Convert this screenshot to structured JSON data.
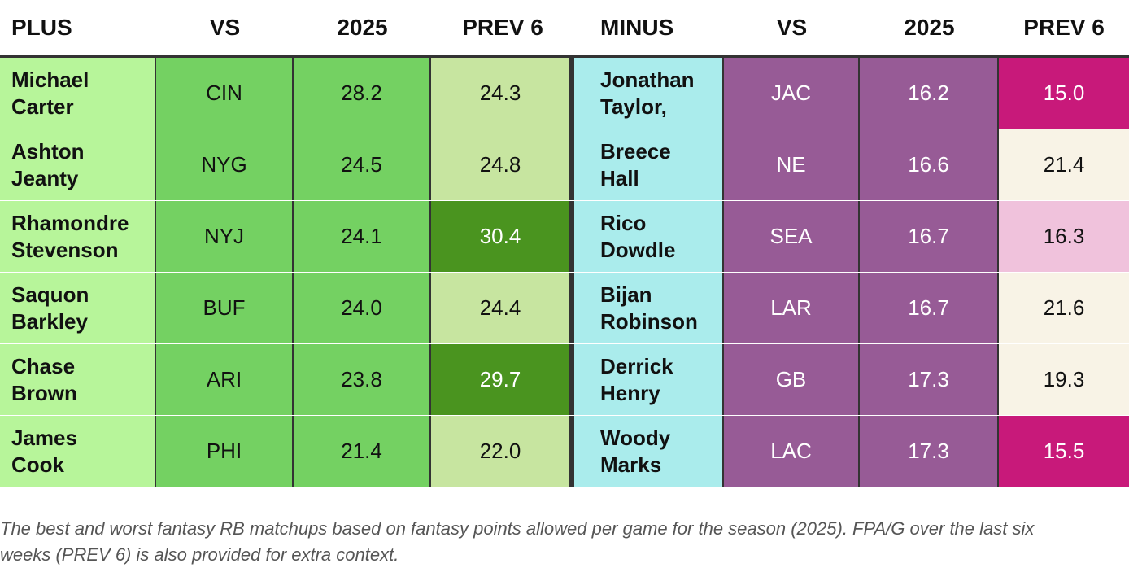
{
  "headers": [
    "PLUS",
    "VS",
    "2025",
    "PREV 6",
    "MINUS",
    "VS",
    "2025",
    "PREV 6"
  ],
  "rows": [
    {
      "plus_name": [
        "Michael",
        "Carter"
      ],
      "plus_vs": "CIN",
      "plus_2025": "28.2",
      "plus_prev6": "24.3",
      "minus_name": [
        "Jonathan",
        "Taylor,"
      ],
      "minus_vs": "JAC",
      "minus_2025": "16.2",
      "minus_prev6": "15.0"
    },
    {
      "plus_name": [
        "Ashton",
        "Jeanty"
      ],
      "plus_vs": "NYG",
      "plus_2025": "24.5",
      "plus_prev6": "24.8",
      "minus_name": [
        "Breece",
        "Hall"
      ],
      "minus_vs": "NE",
      "minus_2025": "16.6",
      "minus_prev6": "21.4"
    },
    {
      "plus_name": [
        "Rhamondre",
        "Stevenson"
      ],
      "plus_vs": "NYJ",
      "plus_2025": "24.1",
      "plus_prev6": "30.4",
      "minus_name": [
        "Rico",
        "Dowdle"
      ],
      "minus_vs": "SEA",
      "minus_2025": "16.7",
      "minus_prev6": "16.3"
    },
    {
      "plus_name": [
        "Saquon",
        "Barkley"
      ],
      "plus_vs": "BUF",
      "plus_2025": "24.0",
      "plus_prev6": "24.4",
      "minus_name": [
        "Bijan",
        "Robinson"
      ],
      "minus_vs": "LAR",
      "minus_2025": "16.7",
      "minus_prev6": "21.6"
    },
    {
      "plus_name": [
        "Chase",
        "Brown"
      ],
      "plus_vs": "ARI",
      "plus_2025": "23.8",
      "plus_prev6": "29.7",
      "minus_name": [
        "Derrick",
        "Henry"
      ],
      "minus_vs": "GB",
      "minus_2025": "17.3",
      "minus_prev6": "19.3"
    },
    {
      "plus_name": [
        "James",
        "Cook"
      ],
      "plus_vs": "PHI",
      "plus_2025": "21.4",
      "plus_prev6": "22.0",
      "minus_name": [
        "Woody",
        "Marks"
      ],
      "minus_vs": "LAC",
      "minus_2025": "17.3",
      "minus_prev6": "15.5"
    }
  ],
  "colors": {
    "plus_name_bg": "#b7f59a",
    "plus_vs_bg": "#74d162",
    "plus_2025_bg": "#74d162",
    "plus_prev6": [
      "#c7e5a0",
      "#c7e5a0",
      "#4a941f",
      "#c7e5a0",
      "#4a941f",
      "#c7e5a0"
    ],
    "minus_name_bg": "#aaecec",
    "minus_vs_bg": "#975b96",
    "minus_2025_bg": "#975b96",
    "minus_prev6": [
      "#c8197a",
      "#f8f3e6",
      "#f0c2dc",
      "#f8f3e6",
      "#f8f3e6",
      "#c8197a"
    ],
    "light_text_cells": [
      "plus_prev6_2",
      "plus_prev6_4",
      "minus_prev6_0",
      "minus_prev6_5"
    ]
  },
  "caption": [
    "The best and worst fantasy RB matchups based on fantasy points allowed per game for the season (2025). FPA/G over the last six",
    "weeks (PREV 6) is also provided for extra context."
  ]
}
